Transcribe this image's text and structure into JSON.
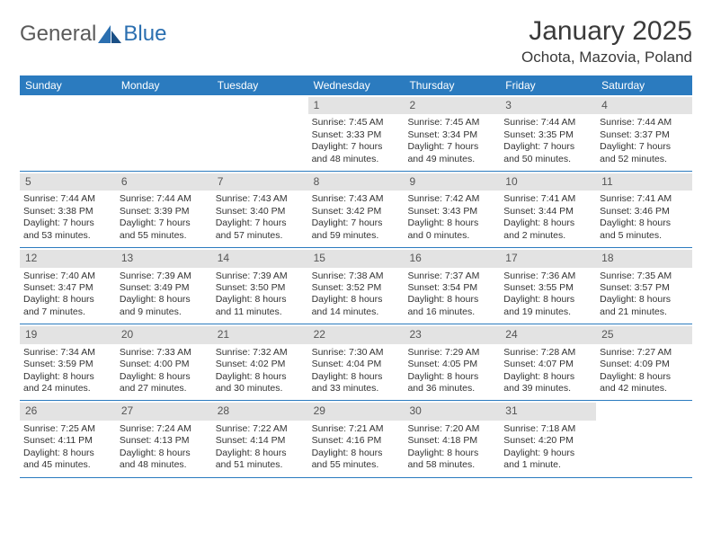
{
  "logo": {
    "text1": "General",
    "text2": "Blue"
  },
  "header": {
    "month_title": "January 2025",
    "location": "Ochota, Mazovia, Poland"
  },
  "colors": {
    "header_bg": "#2b7bbf",
    "header_text": "#ffffff",
    "daynum_bg": "#e3e3e3",
    "row_divider": "#2b7bbf",
    "logo_gray": "#5a5a5a",
    "logo_blue": "#2b6fb0"
  },
  "day_names": [
    "Sunday",
    "Monday",
    "Tuesday",
    "Wednesday",
    "Thursday",
    "Friday",
    "Saturday"
  ],
  "weeks": [
    [
      {
        "empty": true
      },
      {
        "empty": true
      },
      {
        "empty": true
      },
      {
        "num": "1",
        "sunrise": "Sunrise: 7:45 AM",
        "sunset": "Sunset: 3:33 PM",
        "dl1": "Daylight: 7 hours",
        "dl2": "and 48 minutes."
      },
      {
        "num": "2",
        "sunrise": "Sunrise: 7:45 AM",
        "sunset": "Sunset: 3:34 PM",
        "dl1": "Daylight: 7 hours",
        "dl2": "and 49 minutes."
      },
      {
        "num": "3",
        "sunrise": "Sunrise: 7:44 AM",
        "sunset": "Sunset: 3:35 PM",
        "dl1": "Daylight: 7 hours",
        "dl2": "and 50 minutes."
      },
      {
        "num": "4",
        "sunrise": "Sunrise: 7:44 AM",
        "sunset": "Sunset: 3:37 PM",
        "dl1": "Daylight: 7 hours",
        "dl2": "and 52 minutes."
      }
    ],
    [
      {
        "num": "5",
        "sunrise": "Sunrise: 7:44 AM",
        "sunset": "Sunset: 3:38 PM",
        "dl1": "Daylight: 7 hours",
        "dl2": "and 53 minutes."
      },
      {
        "num": "6",
        "sunrise": "Sunrise: 7:44 AM",
        "sunset": "Sunset: 3:39 PM",
        "dl1": "Daylight: 7 hours",
        "dl2": "and 55 minutes."
      },
      {
        "num": "7",
        "sunrise": "Sunrise: 7:43 AM",
        "sunset": "Sunset: 3:40 PM",
        "dl1": "Daylight: 7 hours",
        "dl2": "and 57 minutes."
      },
      {
        "num": "8",
        "sunrise": "Sunrise: 7:43 AM",
        "sunset": "Sunset: 3:42 PM",
        "dl1": "Daylight: 7 hours",
        "dl2": "and 59 minutes."
      },
      {
        "num": "9",
        "sunrise": "Sunrise: 7:42 AM",
        "sunset": "Sunset: 3:43 PM",
        "dl1": "Daylight: 8 hours",
        "dl2": "and 0 minutes."
      },
      {
        "num": "10",
        "sunrise": "Sunrise: 7:41 AM",
        "sunset": "Sunset: 3:44 PM",
        "dl1": "Daylight: 8 hours",
        "dl2": "and 2 minutes."
      },
      {
        "num": "11",
        "sunrise": "Sunrise: 7:41 AM",
        "sunset": "Sunset: 3:46 PM",
        "dl1": "Daylight: 8 hours",
        "dl2": "and 5 minutes."
      }
    ],
    [
      {
        "num": "12",
        "sunrise": "Sunrise: 7:40 AM",
        "sunset": "Sunset: 3:47 PM",
        "dl1": "Daylight: 8 hours",
        "dl2": "and 7 minutes."
      },
      {
        "num": "13",
        "sunrise": "Sunrise: 7:39 AM",
        "sunset": "Sunset: 3:49 PM",
        "dl1": "Daylight: 8 hours",
        "dl2": "and 9 minutes."
      },
      {
        "num": "14",
        "sunrise": "Sunrise: 7:39 AM",
        "sunset": "Sunset: 3:50 PM",
        "dl1": "Daylight: 8 hours",
        "dl2": "and 11 minutes."
      },
      {
        "num": "15",
        "sunrise": "Sunrise: 7:38 AM",
        "sunset": "Sunset: 3:52 PM",
        "dl1": "Daylight: 8 hours",
        "dl2": "and 14 minutes."
      },
      {
        "num": "16",
        "sunrise": "Sunrise: 7:37 AM",
        "sunset": "Sunset: 3:54 PM",
        "dl1": "Daylight: 8 hours",
        "dl2": "and 16 minutes."
      },
      {
        "num": "17",
        "sunrise": "Sunrise: 7:36 AM",
        "sunset": "Sunset: 3:55 PM",
        "dl1": "Daylight: 8 hours",
        "dl2": "and 19 minutes."
      },
      {
        "num": "18",
        "sunrise": "Sunrise: 7:35 AM",
        "sunset": "Sunset: 3:57 PM",
        "dl1": "Daylight: 8 hours",
        "dl2": "and 21 minutes."
      }
    ],
    [
      {
        "num": "19",
        "sunrise": "Sunrise: 7:34 AM",
        "sunset": "Sunset: 3:59 PM",
        "dl1": "Daylight: 8 hours",
        "dl2": "and 24 minutes."
      },
      {
        "num": "20",
        "sunrise": "Sunrise: 7:33 AM",
        "sunset": "Sunset: 4:00 PM",
        "dl1": "Daylight: 8 hours",
        "dl2": "and 27 minutes."
      },
      {
        "num": "21",
        "sunrise": "Sunrise: 7:32 AM",
        "sunset": "Sunset: 4:02 PM",
        "dl1": "Daylight: 8 hours",
        "dl2": "and 30 minutes."
      },
      {
        "num": "22",
        "sunrise": "Sunrise: 7:30 AM",
        "sunset": "Sunset: 4:04 PM",
        "dl1": "Daylight: 8 hours",
        "dl2": "and 33 minutes."
      },
      {
        "num": "23",
        "sunrise": "Sunrise: 7:29 AM",
        "sunset": "Sunset: 4:05 PM",
        "dl1": "Daylight: 8 hours",
        "dl2": "and 36 minutes."
      },
      {
        "num": "24",
        "sunrise": "Sunrise: 7:28 AM",
        "sunset": "Sunset: 4:07 PM",
        "dl1": "Daylight: 8 hours",
        "dl2": "and 39 minutes."
      },
      {
        "num": "25",
        "sunrise": "Sunrise: 7:27 AM",
        "sunset": "Sunset: 4:09 PM",
        "dl1": "Daylight: 8 hours",
        "dl2": "and 42 minutes."
      }
    ],
    [
      {
        "num": "26",
        "sunrise": "Sunrise: 7:25 AM",
        "sunset": "Sunset: 4:11 PM",
        "dl1": "Daylight: 8 hours",
        "dl2": "and 45 minutes."
      },
      {
        "num": "27",
        "sunrise": "Sunrise: 7:24 AM",
        "sunset": "Sunset: 4:13 PM",
        "dl1": "Daylight: 8 hours",
        "dl2": "and 48 minutes."
      },
      {
        "num": "28",
        "sunrise": "Sunrise: 7:22 AM",
        "sunset": "Sunset: 4:14 PM",
        "dl1": "Daylight: 8 hours",
        "dl2": "and 51 minutes."
      },
      {
        "num": "29",
        "sunrise": "Sunrise: 7:21 AM",
        "sunset": "Sunset: 4:16 PM",
        "dl1": "Daylight: 8 hours",
        "dl2": "and 55 minutes."
      },
      {
        "num": "30",
        "sunrise": "Sunrise: 7:20 AM",
        "sunset": "Sunset: 4:18 PM",
        "dl1": "Daylight: 8 hours",
        "dl2": "and 58 minutes."
      },
      {
        "num": "31",
        "sunrise": "Sunrise: 7:18 AM",
        "sunset": "Sunset: 4:20 PM",
        "dl1": "Daylight: 9 hours",
        "dl2": "and 1 minute."
      },
      {
        "empty": true
      }
    ]
  ]
}
